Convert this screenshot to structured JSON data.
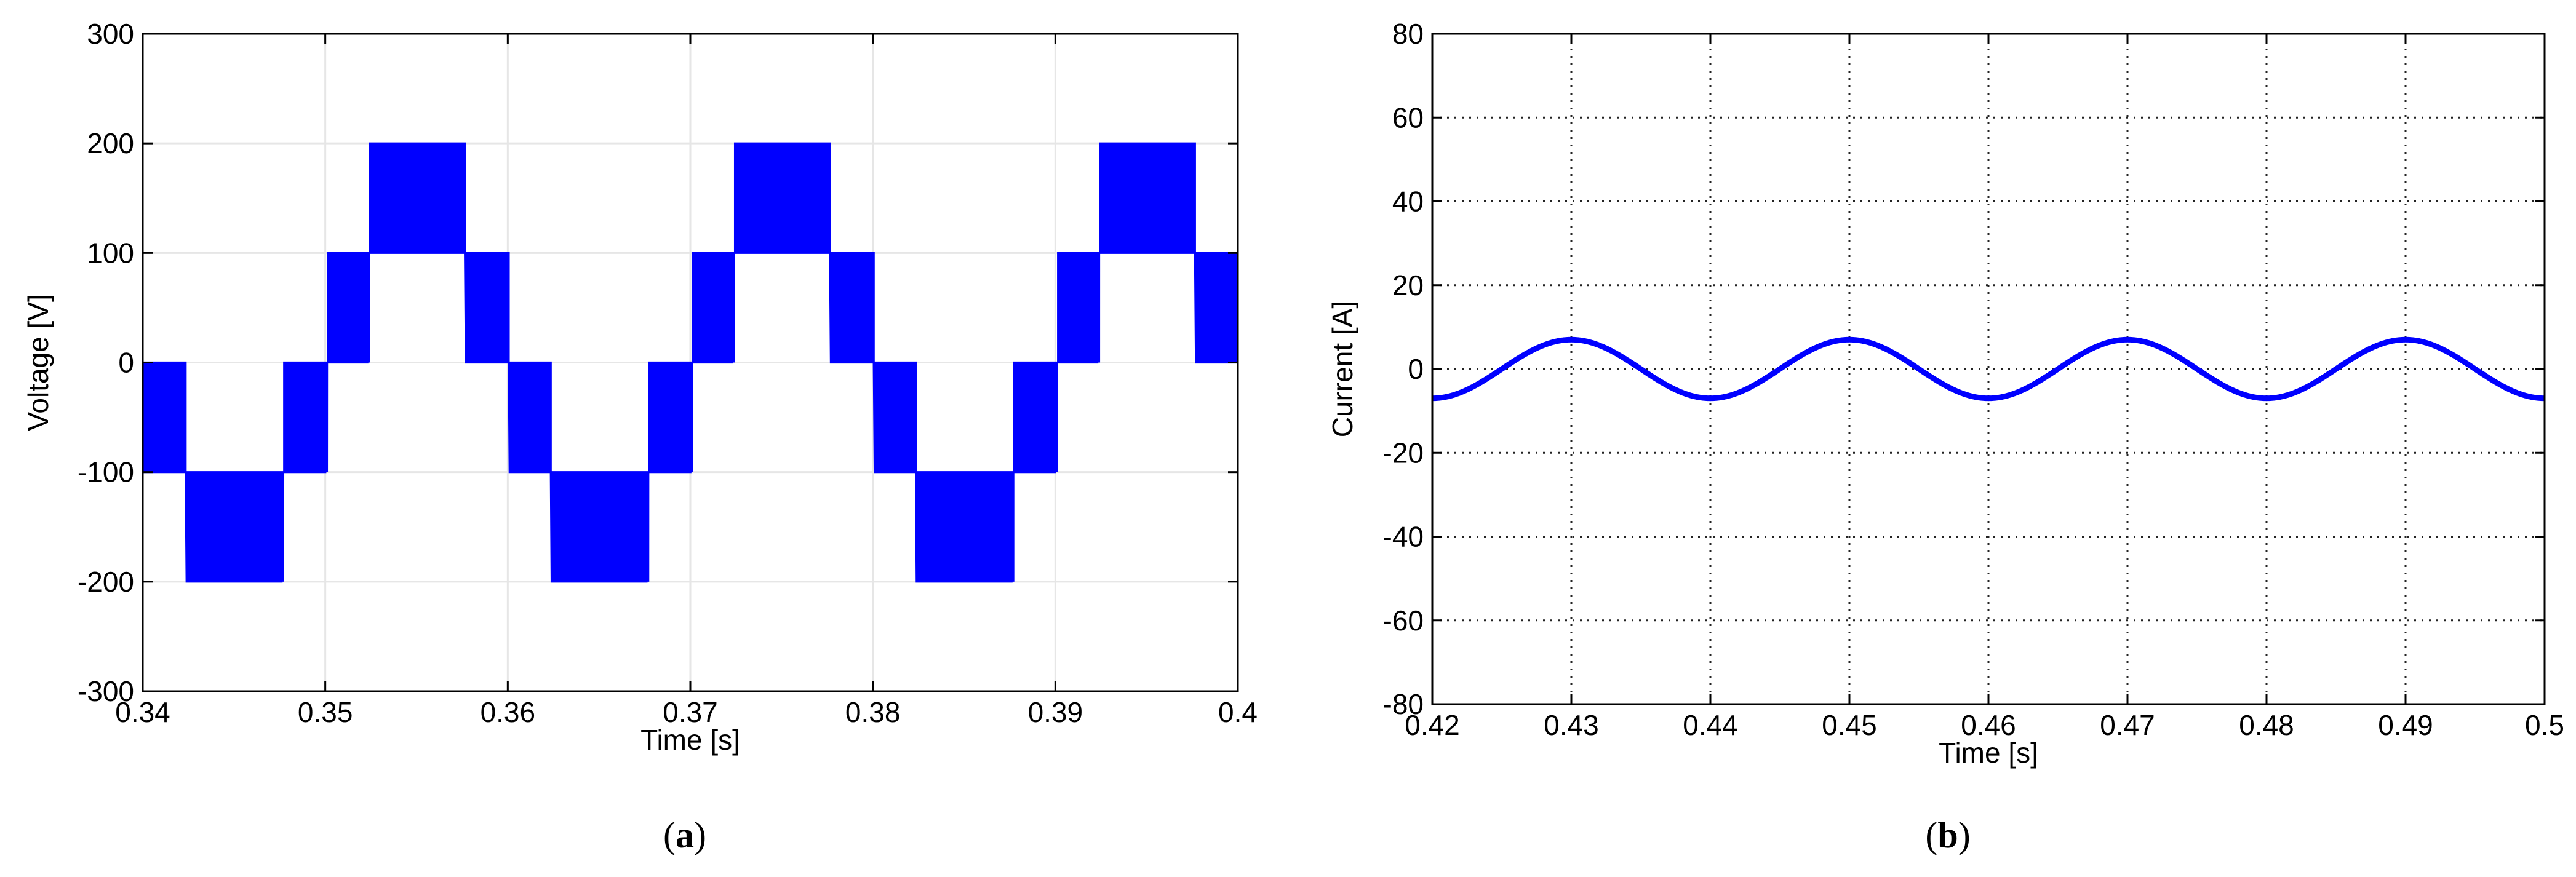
{
  "chart_data": [
    {
      "type": "line",
      "panel": "a",
      "caption": "a",
      "xlabel": "Time [s]",
      "ylabel": "Voltage [V]",
      "xlim": [
        0.34,
        0.4
      ],
      "ylim": [
        -300,
        300
      ],
      "xticks": [
        0.34,
        0.35,
        0.36,
        0.37,
        0.38,
        0.39,
        0.4
      ],
      "xtick_labels": [
        "0.34",
        "0.35",
        "0.36",
        "0.37",
        "0.38",
        "0.39",
        "0.4"
      ],
      "yticks": [
        -300,
        -200,
        -100,
        0,
        100,
        200,
        300
      ],
      "ytick_labels": [
        "-300",
        "-200",
        "-100",
        "0",
        "100",
        "200",
        "300"
      ],
      "grid": "solid-light",
      "line_color": "#0000ff",
      "series": [
        {
          "waveform": "multilevel-pwm",
          "levels": [
            -200,
            -100,
            0,
            100,
            200
          ],
          "fundamental_frequency_hz": 50,
          "fundamental_amplitude": 150,
          "phase_deg": 180,
          "switching_period_s": 0.0001
        }
      ]
    },
    {
      "type": "line",
      "panel": "b",
      "caption": "b",
      "xlabel": "Time [s]",
      "ylabel": "Current [A]",
      "xlim": [
        0.42,
        0.5
      ],
      "ylim": [
        -80,
        80
      ],
      "xticks": [
        0.42,
        0.43,
        0.44,
        0.45,
        0.46,
        0.47,
        0.48,
        0.49,
        0.5
      ],
      "xtick_labels": [
        "0.42",
        "0.43",
        "0.44",
        "0.45",
        "0.46",
        "0.47",
        "0.48",
        "0.49",
        "0.5"
      ],
      "yticks": [
        -80,
        -60,
        -40,
        -20,
        0,
        20,
        40,
        60,
        80
      ],
      "ytick_labels": [
        "-80",
        "-60",
        "-40",
        "-20",
        "0",
        "20",
        "40",
        "60",
        "80"
      ],
      "grid": "dotted",
      "line_color": "#0000ff",
      "series": [
        {
          "waveform": "sine",
          "amplitude": 7,
          "frequency_hz": 50,
          "peaks_at": [
            0.43,
            0.45,
            0.47,
            0.49
          ],
          "troughs_at": [
            0.42,
            0.44,
            0.46,
            0.48,
            0.5
          ]
        }
      ]
    }
  ]
}
